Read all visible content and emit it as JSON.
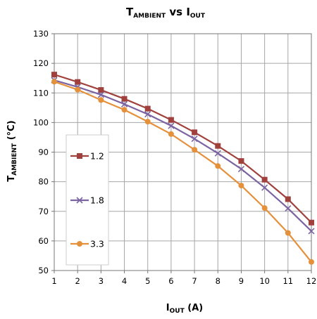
{
  "chart_data": {
    "type": "line",
    "title": {
      "main": "T",
      "sub": "AMBIENT",
      "mid": " vs I",
      "sub2": "OUT"
    },
    "xlabel": {
      "main": "I",
      "sub": "OUT",
      "rest": " (A)"
    },
    "ylabel": {
      "main": "T",
      "sub": "AMBIENT",
      "rest": " (°C)"
    },
    "x": [
      1,
      2,
      3,
      4,
      5,
      6,
      7,
      8,
      9,
      10,
      11,
      12
    ],
    "x_ticks": [
      "1",
      "2",
      "3",
      "4",
      "5",
      "6",
      "7",
      "8",
      "9",
      "10",
      "11",
      "12"
    ],
    "y_ticks": [
      "50",
      "60",
      "70",
      "80",
      "90",
      "100",
      "110",
      "120",
      "130"
    ],
    "xlim": [
      1,
      12
    ],
    "ylim": [
      50,
      130
    ],
    "grid": true,
    "legend_position": "left",
    "series": [
      {
        "name": "1.2",
        "color": "#a0413e",
        "marker": "square",
        "values": [
          116.2,
          113.7,
          111.0,
          108.0,
          104.7,
          100.9,
          96.7,
          92.1,
          87.0,
          80.7,
          74.1,
          66.2
        ]
      },
      {
        "name": "1.8",
        "color": "#7b64a1",
        "marker": "x",
        "values": [
          114.3,
          112.0,
          109.4,
          106.2,
          102.8,
          98.9,
          94.5,
          89.6,
          84.3,
          78.0,
          71.0,
          63.3
        ]
      },
      {
        "name": "3.3",
        "color": "#e5913c",
        "marker": "circle",
        "values": [
          113.8,
          111.1,
          107.6,
          104.3,
          100.3,
          96.1,
          90.8,
          85.3,
          78.7,
          71.1,
          62.7,
          52.9
        ]
      }
    ]
  }
}
